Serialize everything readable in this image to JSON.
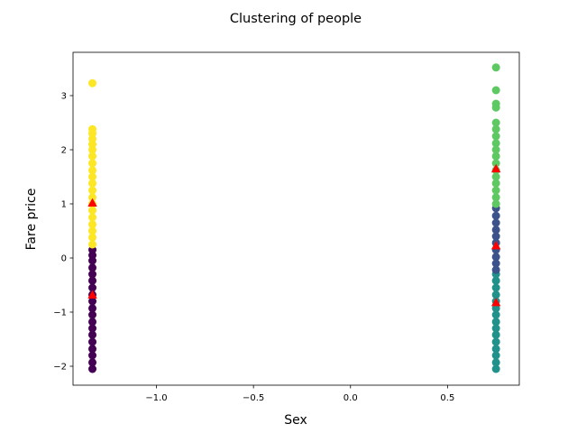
{
  "chart_data": {
    "type": "scatter",
    "title": "Clustering of people",
    "xlabel": "Sex",
    "ylabel": "Fare price",
    "xlim": [
      -1.43,
      0.87
    ],
    "ylim": [
      -2.35,
      3.8
    ],
    "xticks": [
      -1.0,
      -0.5,
      0.0,
      0.5
    ],
    "xtick_labels": [
      "−1.0",
      "−0.5",
      "0.0",
      "0.5"
    ],
    "yticks": [
      -2,
      -1,
      0,
      1,
      2,
      3
    ],
    "ytick_labels": [
      "−2",
      "−1",
      "0",
      "1",
      "2",
      "3"
    ],
    "grid": false,
    "legend": "none",
    "series": [
      {
        "color": "#440154",
        "points": [
          [
            -1.33,
            -2.05
          ],
          [
            -1.33,
            -1.93
          ],
          [
            -1.33,
            -1.8
          ],
          [
            -1.33,
            -1.68
          ],
          [
            -1.33,
            -1.55
          ],
          [
            -1.33,
            -1.42
          ],
          [
            -1.33,
            -1.3
          ],
          [
            -1.33,
            -1.18
          ],
          [
            -1.33,
            -1.05
          ],
          [
            -1.33,
            -0.93
          ],
          [
            -1.33,
            -0.8
          ],
          [
            -1.33,
            -0.68
          ],
          [
            -1.33,
            -0.55
          ],
          [
            -1.33,
            -0.42
          ],
          [
            -1.33,
            -0.3
          ],
          [
            -1.33,
            -0.18
          ],
          [
            -1.33,
            -0.05
          ],
          [
            -1.33,
            0.05
          ],
          [
            -1.33,
            0.15
          ]
        ]
      },
      {
        "color": "#21918c",
        "points": [
          [
            0.75,
            -2.05
          ],
          [
            0.75,
            -1.93
          ],
          [
            0.75,
            -1.8
          ],
          [
            0.75,
            -1.68
          ],
          [
            0.75,
            -1.55
          ],
          [
            0.75,
            -1.42
          ],
          [
            0.75,
            -1.3
          ],
          [
            0.75,
            -1.18
          ],
          [
            0.75,
            -1.05
          ],
          [
            0.75,
            -0.93
          ],
          [
            0.75,
            -0.8
          ],
          [
            0.75,
            -0.68
          ],
          [
            0.75,
            -0.55
          ],
          [
            0.75,
            -0.42
          ],
          [
            0.75,
            -0.3
          ]
        ]
      },
      {
        "color": "#3b528b",
        "points": [
          [
            0.75,
            -0.22
          ],
          [
            0.75,
            -0.1
          ],
          [
            0.75,
            0.02
          ],
          [
            0.75,
            0.15
          ],
          [
            0.75,
            0.28
          ],
          [
            0.75,
            0.4
          ],
          [
            0.75,
            0.52
          ],
          [
            0.75,
            0.65
          ],
          [
            0.75,
            0.78
          ],
          [
            0.75,
            0.92
          ]
        ]
      },
      {
        "color": "#fde725",
        "points": [
          [
            -1.33,
            0.25
          ],
          [
            -1.33,
            0.38
          ],
          [
            -1.33,
            0.5
          ],
          [
            -1.33,
            0.62
          ],
          [
            -1.33,
            0.75
          ],
          [
            -1.33,
            0.88
          ],
          [
            -1.33,
            1.0
          ],
          [
            -1.33,
            1.12
          ],
          [
            -1.33,
            1.25
          ],
          [
            -1.33,
            1.38
          ],
          [
            -1.33,
            1.5
          ],
          [
            -1.33,
            1.62
          ],
          [
            -1.33,
            1.75
          ],
          [
            -1.33,
            1.88
          ],
          [
            -1.33,
            2.0
          ],
          [
            -1.33,
            2.1
          ],
          [
            -1.33,
            2.2
          ],
          [
            -1.33,
            2.3
          ],
          [
            -1.33,
            2.38
          ],
          [
            -1.33,
            3.23
          ]
        ]
      },
      {
        "color": "#5ec962",
        "points": [
          [
            0.75,
            1.0
          ],
          [
            0.75,
            1.12
          ],
          [
            0.75,
            1.25
          ],
          [
            0.75,
            1.38
          ],
          [
            0.75,
            1.5
          ],
          [
            0.75,
            1.62
          ],
          [
            0.75,
            1.75
          ],
          [
            0.75,
            1.88
          ],
          [
            0.75,
            2.0
          ],
          [
            0.75,
            2.12
          ],
          [
            0.75,
            2.25
          ],
          [
            0.75,
            2.38
          ],
          [
            0.75,
            2.5
          ],
          [
            0.75,
            2.78
          ],
          [
            0.75,
            2.85
          ],
          [
            0.75,
            3.1
          ],
          [
            0.75,
            3.52
          ]
        ]
      }
    ],
    "centroids": {
      "color": "#ff0000",
      "marker": "triangle",
      "points": [
        [
          -1.33,
          1.02
        ],
        [
          -1.33,
          -0.68
        ],
        [
          0.75,
          1.65
        ],
        [
          0.75,
          0.23
        ],
        [
          0.75,
          -0.82
        ]
      ]
    }
  }
}
